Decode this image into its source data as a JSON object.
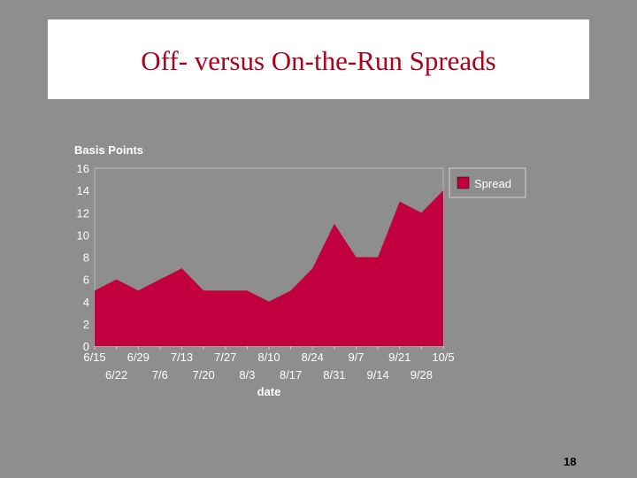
{
  "slide": {
    "title": "Off- versus On-the-Run Spreads",
    "page_number": "18"
  },
  "colors": {
    "background": "#8e8e8e",
    "title_text": "#b0001c",
    "series_fill": "#c2003f",
    "axis_text": "#ffffff"
  },
  "chart_data": {
    "type": "area",
    "ylabel": "Basis Points",
    "xlabel": "date",
    "ylim": [
      0,
      16
    ],
    "yticks": [
      0,
      2,
      4,
      6,
      8,
      10,
      12,
      14,
      16
    ],
    "grid": false,
    "legend_position": "top-right",
    "categories": [
      "6/15",
      "6/22",
      "6/29",
      "7/6",
      "7/13",
      "7/20",
      "7/27",
      "8/3",
      "8/10",
      "8/17",
      "8/24",
      "8/31",
      "9/7",
      "9/14",
      "9/21",
      "9/28",
      "10/5"
    ],
    "series": [
      {
        "name": "Spread",
        "values": [
          5,
          6,
          5,
          6,
          7,
          5,
          5,
          5,
          4,
          5,
          7,
          11,
          8,
          8,
          13,
          12,
          14
        ]
      }
    ]
  }
}
